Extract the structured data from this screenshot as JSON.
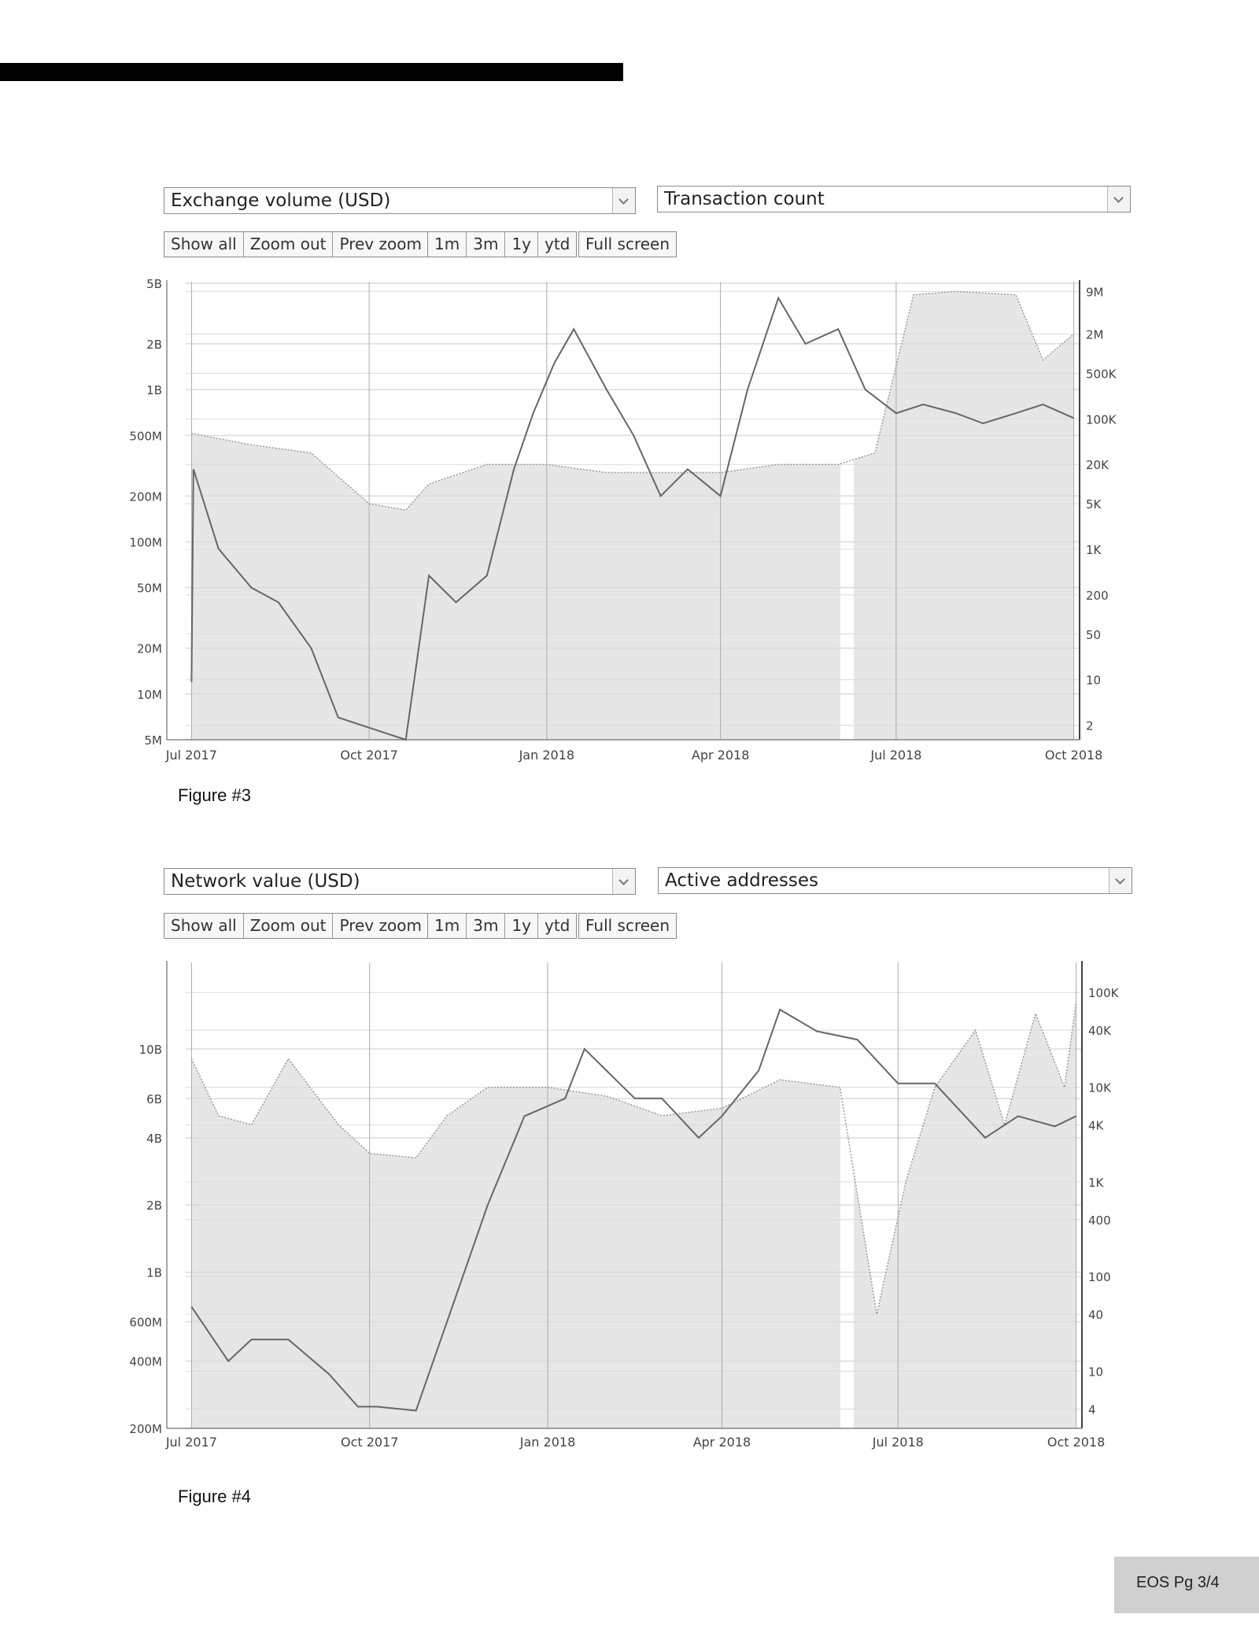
{
  "figures": [
    {
      "left_select": "Exchange volume (USD)",
      "right_select": "Transaction count",
      "buttons_a": [
        "Show all",
        "Zoom out",
        "Prev zoom"
      ],
      "buttons_b": [
        "1m",
        "3m",
        "1y",
        "ytd"
      ],
      "button_full": "Full screen",
      "caption": "Figure #3"
    },
    {
      "left_select": "Network value (USD)",
      "right_select": "Active addresses",
      "buttons_a": [
        "Show all",
        "Zoom out",
        "Prev zoom"
      ],
      "buttons_b": [
        "1m",
        "3m",
        "1y",
        "ytd"
      ],
      "button_full": "Full screen",
      "caption": "Figure #4"
    }
  ],
  "page_label": "EOS Pg 3/4",
  "colors": {
    "line": "#666666",
    "area": "#e6e6e6",
    "grid": "#dcdcdc",
    "bar": "#000000"
  },
  "chart_data": [
    {
      "type": "line",
      "title": "",
      "x_ticks": [
        "Jul 2017",
        "Oct 2017",
        "Jan 2018",
        "Apr 2018",
        "Jul 2018",
        "Oct 2018"
      ],
      "left_axis_ticks": [
        "5B",
        "2B",
        "1B",
        "500M",
        "200M",
        "100M",
        "50M",
        "20M",
        "10M",
        "5M"
      ],
      "right_axis_ticks": [
        "9M",
        "2M",
        "500K",
        "100K",
        "20K",
        "5K",
        "1K",
        "200",
        "50",
        "10",
        "2"
      ],
      "yscale": "log",
      "series": [
        {
          "name": "Exchange volume (USD)",
          "style": "solid line",
          "points": [
            [
              "2017-07-01",
              12000000
            ],
            [
              "2017-07-02",
              300000000
            ],
            [
              "2017-07-15",
              90000000
            ],
            [
              "2017-08-01",
              50000000
            ],
            [
              "2017-08-15",
              40000000
            ],
            [
              "2017-09-01",
              20000000
            ],
            [
              "2017-09-15",
              7000000
            ],
            [
              "2017-10-01",
              6000000
            ],
            [
              "2017-10-20",
              5000000
            ],
            [
              "2017-11-01",
              60000000
            ],
            [
              "2017-11-15",
              40000000
            ],
            [
              "2017-12-01",
              60000000
            ],
            [
              "2017-12-15",
              300000000
            ],
            [
              "2017-12-25",
              700000000
            ],
            [
              "2018-01-05",
              1500000000
            ],
            [
              "2018-01-15",
              2500000000
            ],
            [
              "2018-02-01",
              1000000000
            ],
            [
              "2018-02-15",
              500000000
            ],
            [
              "2018-03-01",
              200000000
            ],
            [
              "2018-03-15",
              300000000
            ],
            [
              "2018-04-01",
              200000000
            ],
            [
              "2018-04-15",
              1000000000
            ],
            [
              "2018-05-01",
              4000000000
            ],
            [
              "2018-05-15",
              2000000000
            ],
            [
              "2018-06-01",
              2500000000
            ],
            [
              "2018-06-15",
              1000000000
            ],
            [
              "2018-07-01",
              700000000
            ],
            [
              "2018-07-15",
              800000000
            ],
            [
              "2018-08-01",
              700000000
            ],
            [
              "2018-08-15",
              600000000
            ],
            [
              "2018-09-01",
              700000000
            ],
            [
              "2018-09-15",
              800000000
            ],
            [
              "2018-10-01",
              650000000
            ]
          ]
        },
        {
          "name": "Transaction count",
          "style": "dotted line, shaded area",
          "points": [
            [
              "2017-07-01",
              60000
            ],
            [
              "2017-08-01",
              40000
            ],
            [
              "2017-09-01",
              30000
            ],
            [
              "2017-10-01",
              5000
            ],
            [
              "2017-10-20",
              4000
            ],
            [
              "2017-11-01",
              10000
            ],
            [
              "2017-12-01",
              20000
            ],
            [
              "2018-01-01",
              20000
            ],
            [
              "2018-02-01",
              15000
            ],
            [
              "2018-03-01",
              15000
            ],
            [
              "2018-04-01",
              15000
            ],
            [
              "2018-05-01",
              20000
            ],
            [
              "2018-06-01",
              20000
            ],
            [
              "2018-06-20",
              30000
            ],
            [
              "2018-07-10",
              8000000
            ],
            [
              "2018-08-01",
              9000000
            ],
            [
              "2018-09-01",
              8000000
            ],
            [
              "2018-09-15",
              800000
            ],
            [
              "2018-10-01",
              2000000
            ]
          ]
        }
      ]
    },
    {
      "type": "line",
      "title": "",
      "x_ticks": [
        "Jul 2017",
        "Oct 2017",
        "Jan 2018",
        "Apr 2018",
        "Jul 2018",
        "Oct 2018"
      ],
      "left_axis_ticks": [
        "10B",
        "6B",
        "4B",
        "2B",
        "1B",
        "600M",
        "400M",
        "200M"
      ],
      "right_axis_ticks": [
        "100K",
        "40K",
        "10K",
        "4K",
        "1K",
        "400",
        "100",
        "40",
        "10",
        "4"
      ],
      "yscale": "log",
      "series": [
        {
          "name": "Network value (USD)",
          "style": "solid line",
          "points": [
            [
              "2017-07-01",
              700000000
            ],
            [
              "2017-07-20",
              400000000
            ],
            [
              "2017-08-01",
              500000000
            ],
            [
              "2017-08-20",
              500000000
            ],
            [
              "2017-09-10",
              350000000
            ],
            [
              "2017-09-25",
              250000000
            ],
            [
              "2017-10-05",
              250000000
            ],
            [
              "2017-10-25",
              240000000
            ],
            [
              "2017-11-10",
              600000000
            ],
            [
              "2017-12-01",
              2000000000
            ],
            [
              "2017-12-20",
              5000000000
            ],
            [
              "2018-01-10",
              6000000000
            ],
            [
              "2018-01-20",
              10000000000
            ],
            [
              "2018-02-15",
              6000000000
            ],
            [
              "2018-03-01",
              6000000000
            ],
            [
              "2018-03-20",
              4000000000
            ],
            [
              "2018-04-01",
              5000000000
            ],
            [
              "2018-04-20",
              8000000000
            ],
            [
              "2018-05-01",
              15000000000
            ],
            [
              "2018-05-20",
              12000000000
            ],
            [
              "2018-06-10",
              11000000000
            ],
            [
              "2018-07-01",
              7000000000
            ],
            [
              "2018-07-20",
              7000000000
            ],
            [
              "2018-08-15",
              4000000000
            ],
            [
              "2018-09-01",
              5000000000
            ],
            [
              "2018-09-20",
              4500000000
            ],
            [
              "2018-10-01",
              5000000000
            ]
          ]
        },
        {
          "name": "Active addresses",
          "style": "dotted line, shaded area",
          "points": [
            [
              "2017-07-01",
              20000
            ],
            [
              "2017-07-15",
              5000
            ],
            [
              "2017-08-01",
              4000
            ],
            [
              "2017-08-20",
              20000
            ],
            [
              "2017-09-15",
              4000
            ],
            [
              "2017-10-01",
              2000
            ],
            [
              "2017-10-25",
              1800
            ],
            [
              "2017-11-10",
              5000
            ],
            [
              "2017-12-01",
              10000
            ],
            [
              "2018-01-01",
              10000
            ],
            [
              "2018-02-01",
              8000
            ],
            [
              "2018-03-01",
              5000
            ],
            [
              "2018-04-01",
              6000
            ],
            [
              "2018-05-01",
              12000
            ],
            [
              "2018-06-01",
              10000
            ],
            [
              "2018-06-20",
              40
            ],
            [
              "2018-07-05",
              1000
            ],
            [
              "2018-07-20",
              10000
            ],
            [
              "2018-08-10",
              40000
            ],
            [
              "2018-08-25",
              4000
            ],
            [
              "2018-09-10",
              60000
            ],
            [
              "2018-09-25",
              10000
            ],
            [
              "2018-10-01",
              80000
            ]
          ]
        }
      ]
    }
  ]
}
